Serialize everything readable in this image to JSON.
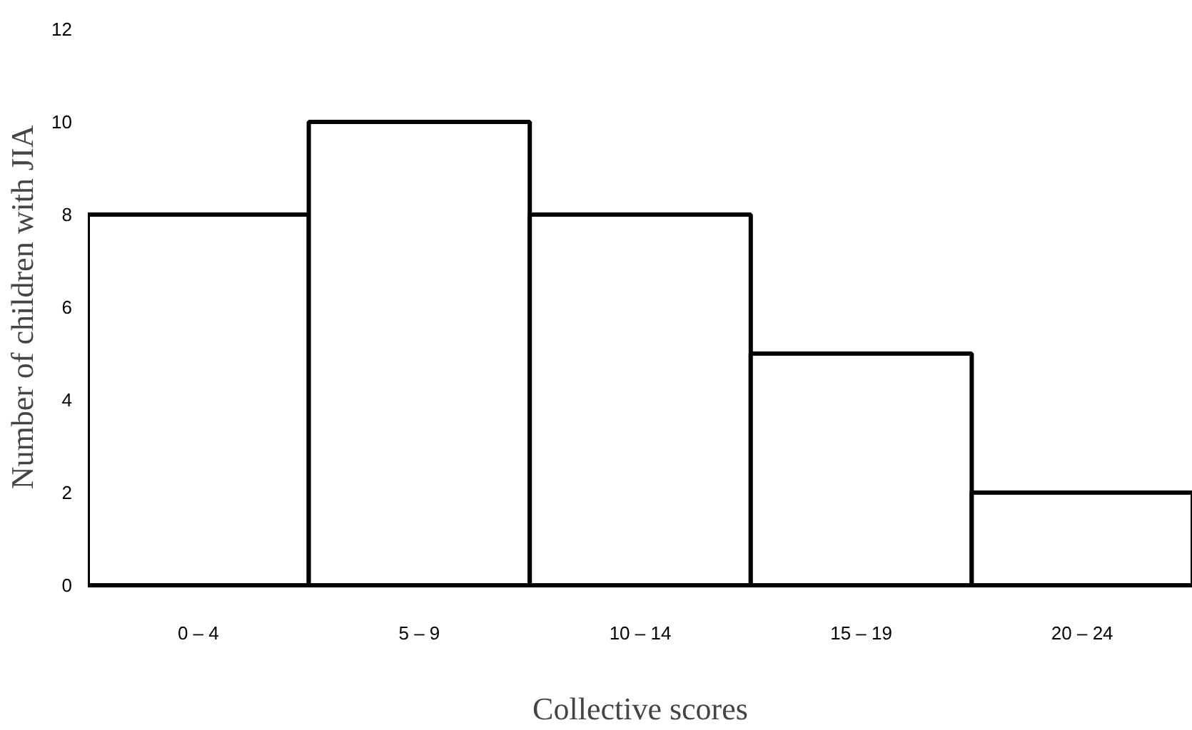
{
  "chart_data": {
    "type": "bar",
    "xlabel": "Collective scores",
    "ylabel": "Number of children with JIA",
    "categories": [
      "0 – 4",
      "5 – 9",
      "10 – 14",
      "15 – 19",
      "20 – 24"
    ],
    "values": [
      8,
      10,
      8,
      5,
      2
    ],
    "color": "#ffffff",
    "ylim": [
      0,
      12
    ],
    "yticks": [
      0,
      2,
      4,
      6,
      8,
      10,
      12
    ],
    "grid": false
  }
}
